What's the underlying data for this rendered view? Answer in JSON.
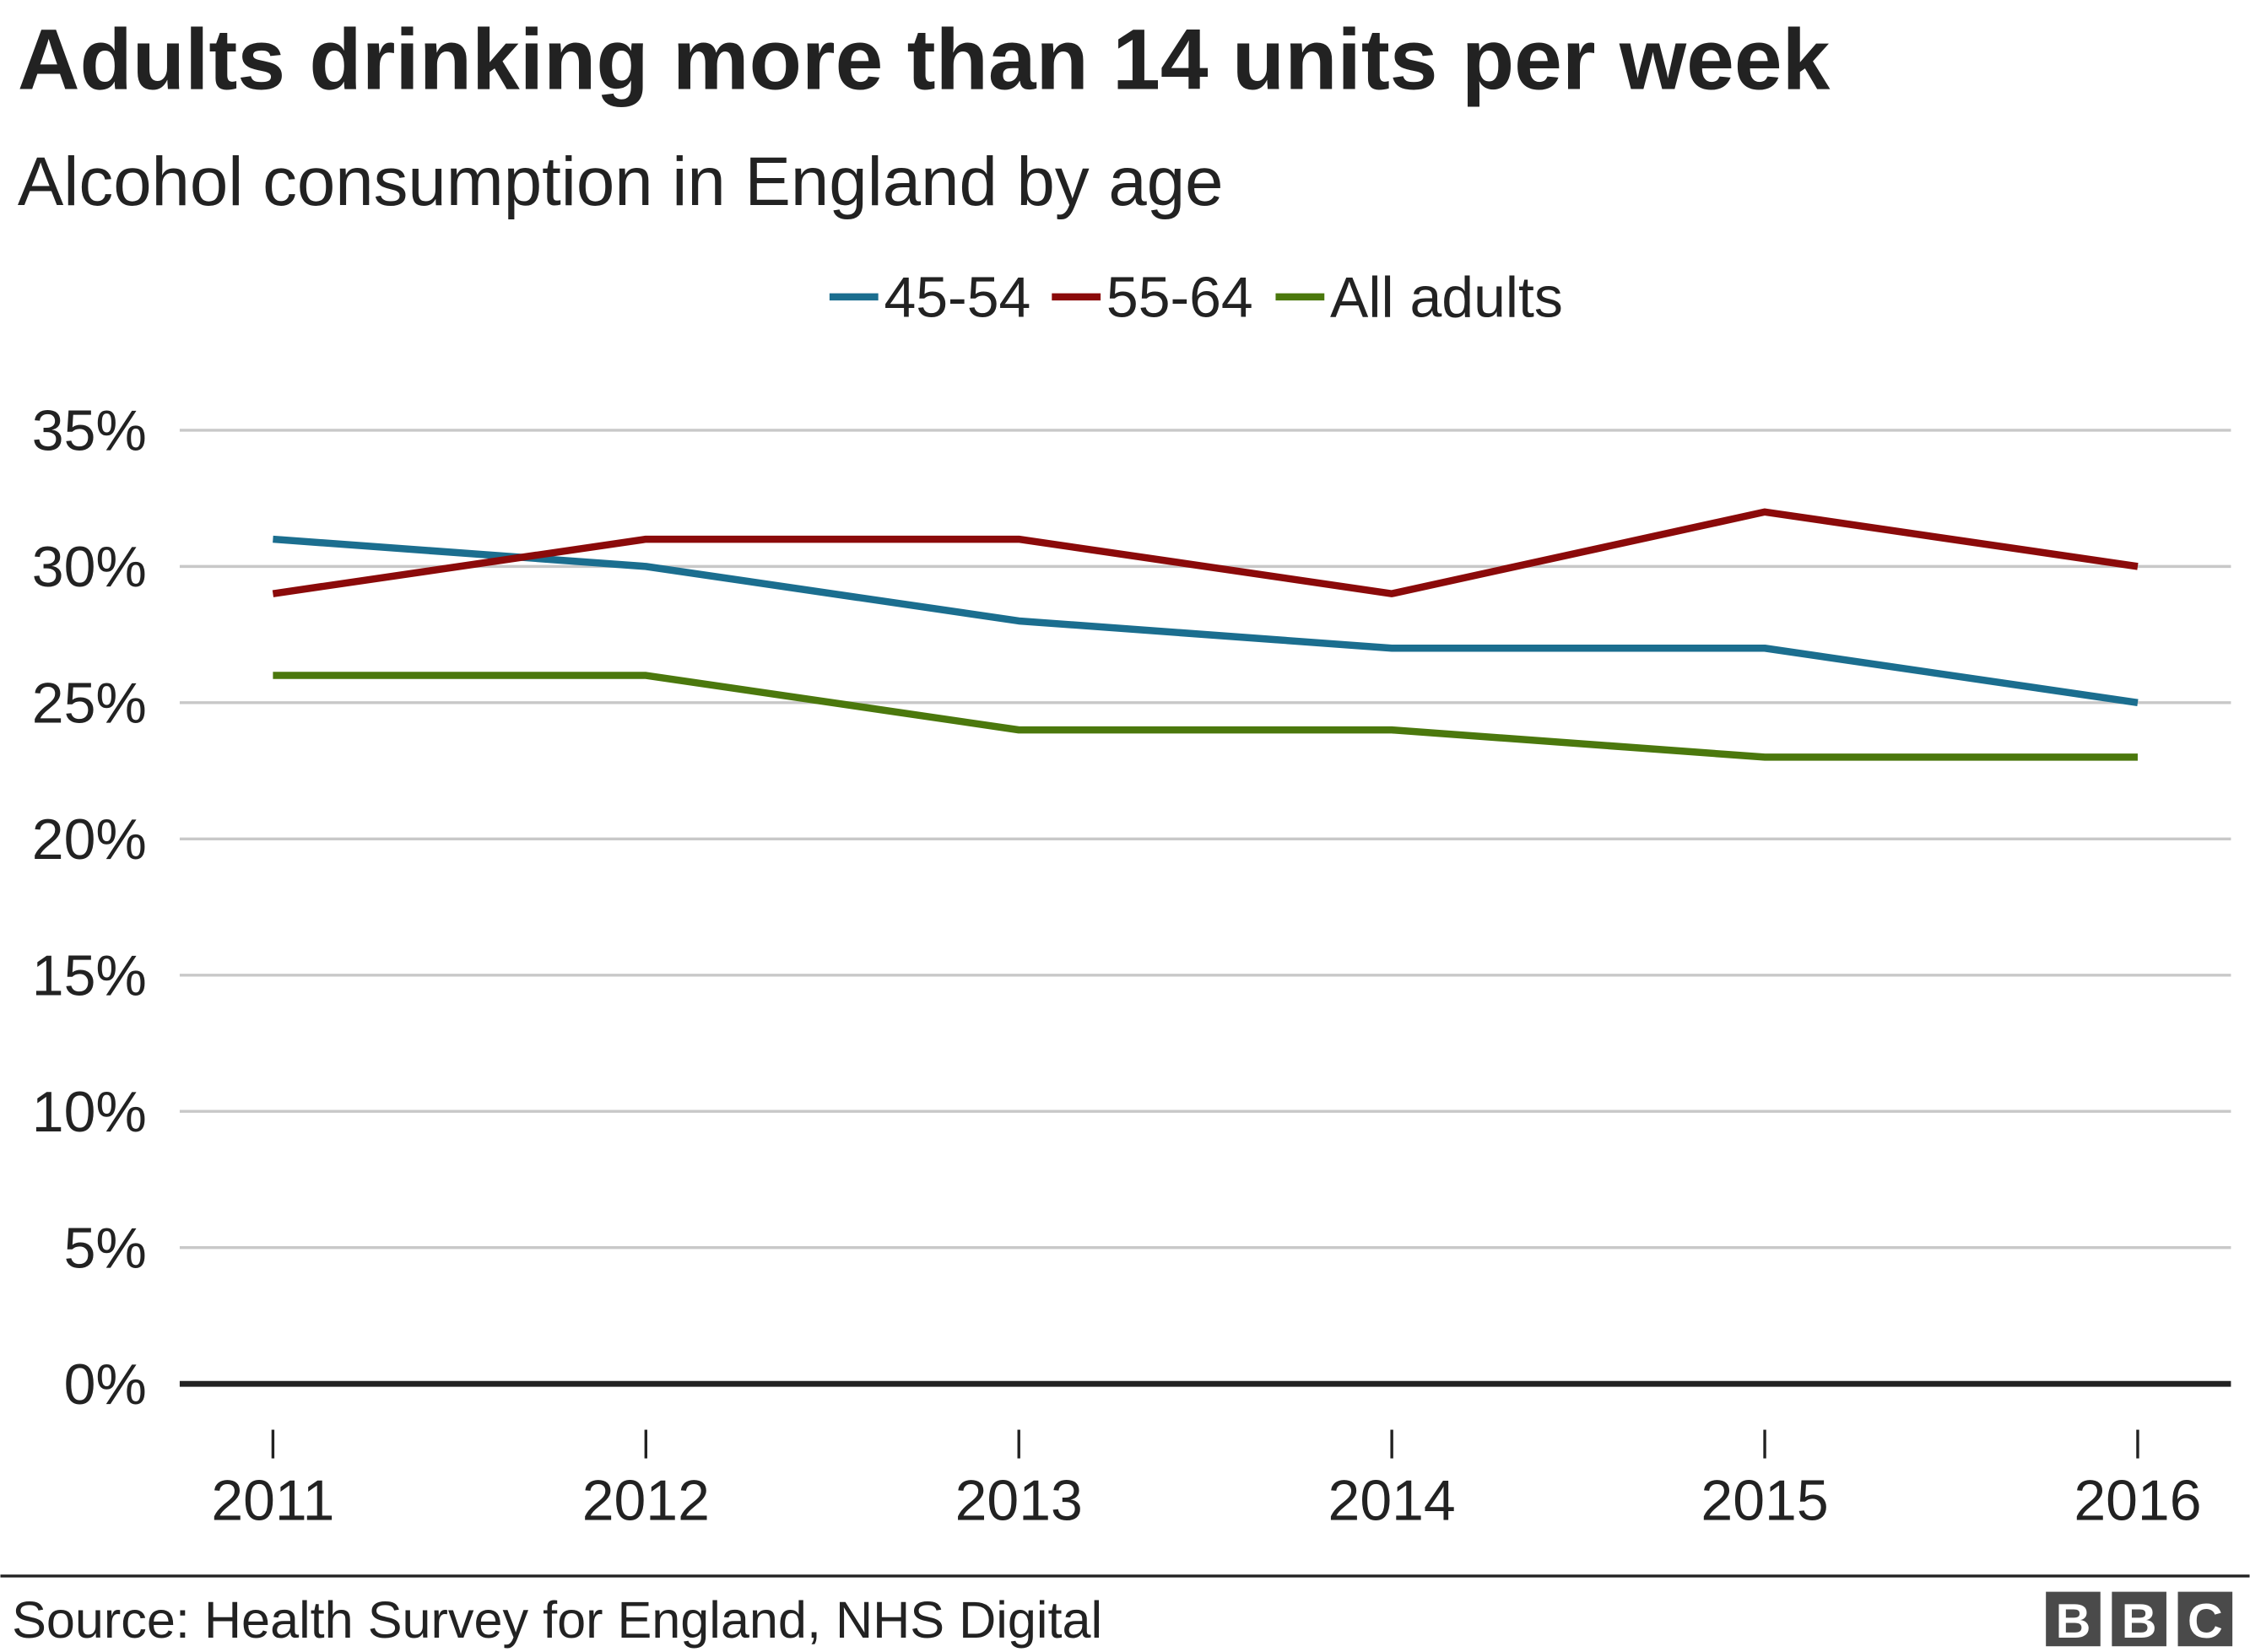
{
  "chart_data": {
    "type": "line",
    "title": "Adults drinking more than 14 units per week",
    "subtitle": "Alcohol consumption in England by age",
    "categories": [
      "2011",
      "2012",
      "2013",
      "2014",
      "2015",
      "2016"
    ],
    "series": [
      {
        "name": "45-54",
        "color": "#1b6e8f",
        "values": [
          31,
          30,
          28,
          27,
          27,
          25
        ]
      },
      {
        "name": "55-64",
        "color": "#8b0a0a",
        "values": [
          29,
          31,
          31,
          29,
          32,
          30
        ]
      },
      {
        "name": "All adults",
        "color": "#4b780d",
        "values": [
          26,
          26,
          24,
          24,
          23,
          23
        ]
      }
    ],
    "ylim": [
      0,
      35
    ],
    "yticks": [
      0,
      5,
      10,
      15,
      20,
      25,
      30,
      35
    ],
    "ytick_labels": [
      "0%",
      "5%",
      "10%",
      "15%",
      "20%",
      "25%",
      "30%",
      "35%"
    ],
    "xlabel": "",
    "ylabel": "",
    "grid": true,
    "legend_position": "top-center"
  },
  "source": "Source: Health Survey for England, NHS Digital",
  "logo": "BBC"
}
